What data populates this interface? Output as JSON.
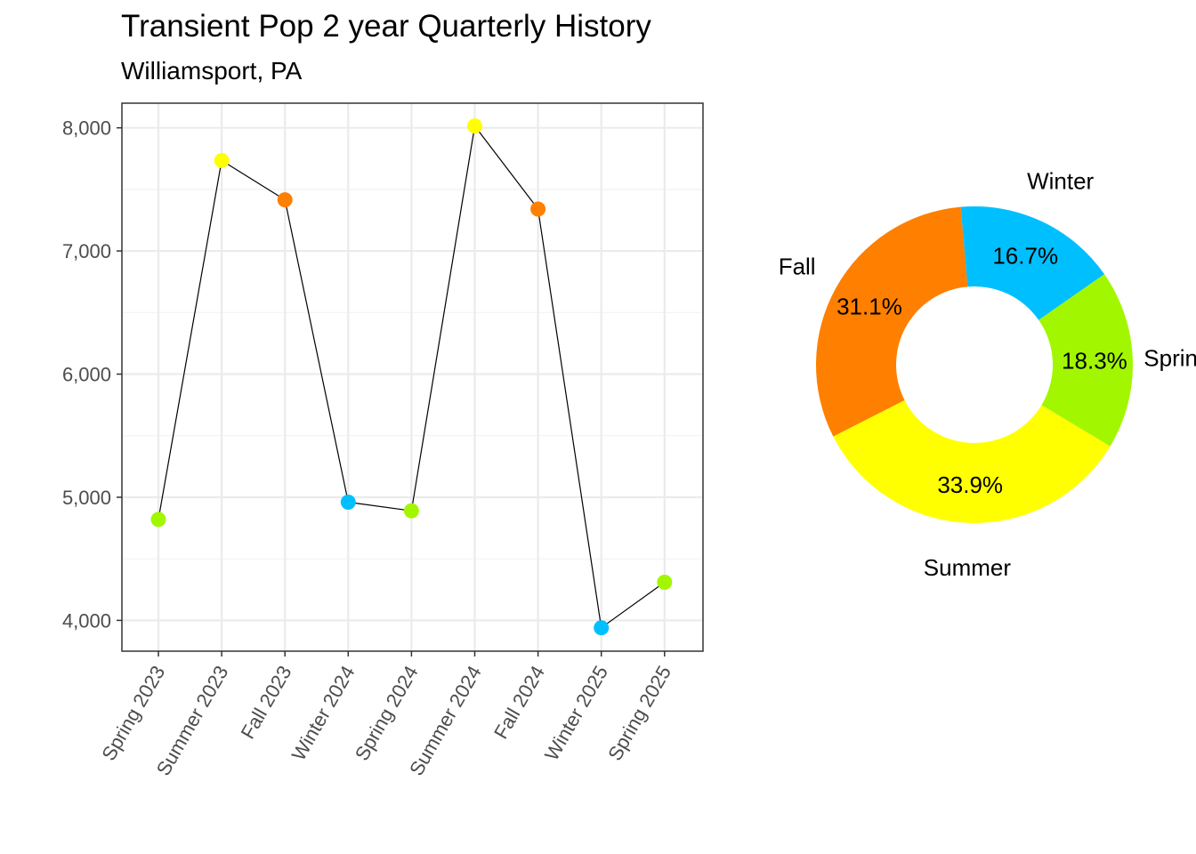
{
  "chart_data": [
    {
      "type": "line",
      "title": "Transient Pop 2 year Quarterly History",
      "subtitle": "Williamsport, PA",
      "categories": [
        "Spring 2023",
        "Summer 2023",
        "Fall 2023",
        "Winter 2024",
        "Spring 2024",
        "Summer 2024",
        "Fall 2024",
        "Winter 2025",
        "Spring 2025"
      ],
      "values": [
        4820,
        7735,
        7415,
        4960,
        4890,
        8015,
        7340,
        3940,
        4310
      ],
      "point_seasons": [
        "Spring",
        "Summer",
        "Fall",
        "Winter",
        "Spring",
        "Summer",
        "Fall",
        "Winter",
        "Spring"
      ],
      "y_ticks": [
        "4,000",
        "5,000",
        "6,000",
        "7,000",
        "8,000"
      ],
      "y_tick_values": [
        4000,
        5000,
        6000,
        7000,
        8000
      ],
      "ylim": [
        3750,
        8200
      ],
      "grid": true,
      "line_color": "#000000"
    },
    {
      "type": "pie",
      "style": "donut",
      "slices": [
        {
          "name": "Winter",
          "value": 16.7,
          "label": "16.7%"
        },
        {
          "name": "Spring",
          "value": 18.3,
          "label": "18.3%"
        },
        {
          "name": "Summer",
          "value": 33.9,
          "label": "33.9%"
        },
        {
          "name": "Fall",
          "value": 31.1,
          "label": "31.1%"
        }
      ]
    }
  ],
  "colors": {
    "Winter": "#00BFFF",
    "Spring": "#A2F700",
    "Summer": "#FFFF00",
    "Fall": "#FF7F00"
  }
}
